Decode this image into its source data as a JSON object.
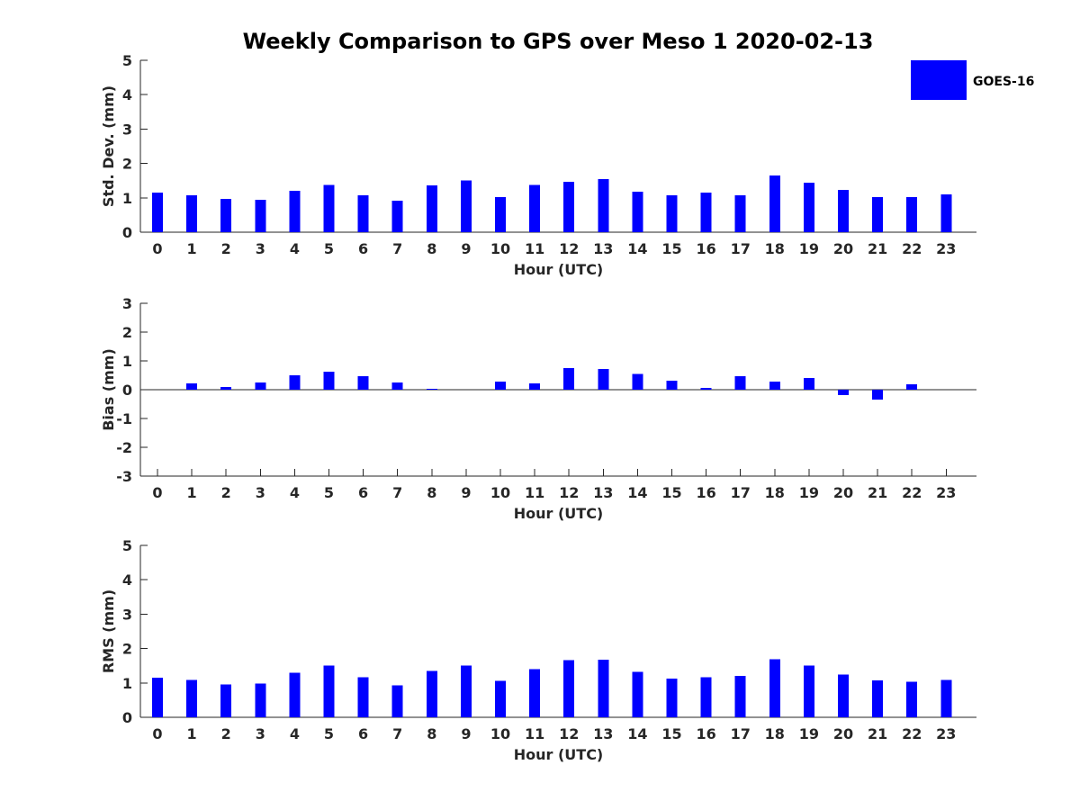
{
  "title": "Weekly Comparison to GPS over Meso 1 2020-02-13",
  "colors": {
    "bar": "#0000ff",
    "axis": "#262626"
  },
  "legend": {
    "label": "GOES-16",
    "placement": "top-right"
  },
  "chart_data": [
    {
      "type": "bar",
      "name": "std-dev",
      "ylabel": "Std. Dev. (mm)",
      "xlabel": "Hour (UTC)",
      "ylim": [
        0,
        5
      ],
      "yticks": [
        0,
        1,
        2,
        3,
        4,
        5
      ],
      "categories": [
        "0",
        "1",
        "2",
        "3",
        "4",
        "5",
        "6",
        "7",
        "8",
        "9",
        "10",
        "11",
        "12",
        "13",
        "14",
        "15",
        "16",
        "17",
        "18",
        "19",
        "20",
        "21",
        "22",
        "23"
      ],
      "series": [
        {
          "name": "GOES-16",
          "values": [
            1.15,
            1.07,
            0.97,
            0.94,
            1.2,
            1.38,
            1.07,
            0.92,
            1.36,
            1.51,
            1.02,
            1.38,
            1.47,
            1.54,
            1.18,
            1.07,
            1.15,
            1.07,
            1.65,
            1.44,
            1.23,
            1.02,
            1.02,
            1.1
          ]
        }
      ]
    },
    {
      "type": "bar",
      "name": "bias",
      "ylabel": "Bias (mm)",
      "xlabel": "Hour (UTC)",
      "ylim": [
        -3,
        3
      ],
      "yticks": [
        -3,
        -2,
        -1,
        0,
        1,
        2,
        3
      ],
      "categories": [
        "0",
        "1",
        "2",
        "3",
        "4",
        "5",
        "6",
        "7",
        "8",
        "9",
        "10",
        "11",
        "12",
        "13",
        "14",
        "15",
        "16",
        "17",
        "18",
        "19",
        "20",
        "21",
        "22",
        "23"
      ],
      "series": [
        {
          "name": "GOES-16",
          "values": [
            0,
            0.22,
            0.1,
            0.25,
            0.5,
            0.62,
            0.47,
            0.25,
            0.03,
            0,
            0.28,
            0.22,
            0.75,
            0.72,
            0.55,
            0.32,
            0.06,
            0.47,
            0.28,
            0.41,
            -0.18,
            -0.35,
            0.19,
            0
          ]
        }
      ]
    },
    {
      "type": "bar",
      "name": "rms",
      "ylabel": "RMS (mm)",
      "xlabel": "Hour (UTC)",
      "ylim": [
        0,
        5
      ],
      "yticks": [
        0,
        1,
        2,
        3,
        4,
        5
      ],
      "categories": [
        "0",
        "1",
        "2",
        "3",
        "4",
        "5",
        "6",
        "7",
        "8",
        "9",
        "10",
        "11",
        "12",
        "13",
        "14",
        "15",
        "16",
        "17",
        "18",
        "19",
        "20",
        "21",
        "22",
        "23"
      ],
      "series": [
        {
          "name": "GOES-16",
          "values": [
            1.15,
            1.09,
            0.96,
            0.98,
            1.3,
            1.5,
            1.17,
            0.93,
            1.35,
            1.5,
            1.06,
            1.4,
            1.66,
            1.68,
            1.32,
            1.12,
            1.17,
            1.2,
            1.69,
            1.5,
            1.24,
            1.07,
            1.04,
            1.09
          ]
        }
      ]
    }
  ]
}
